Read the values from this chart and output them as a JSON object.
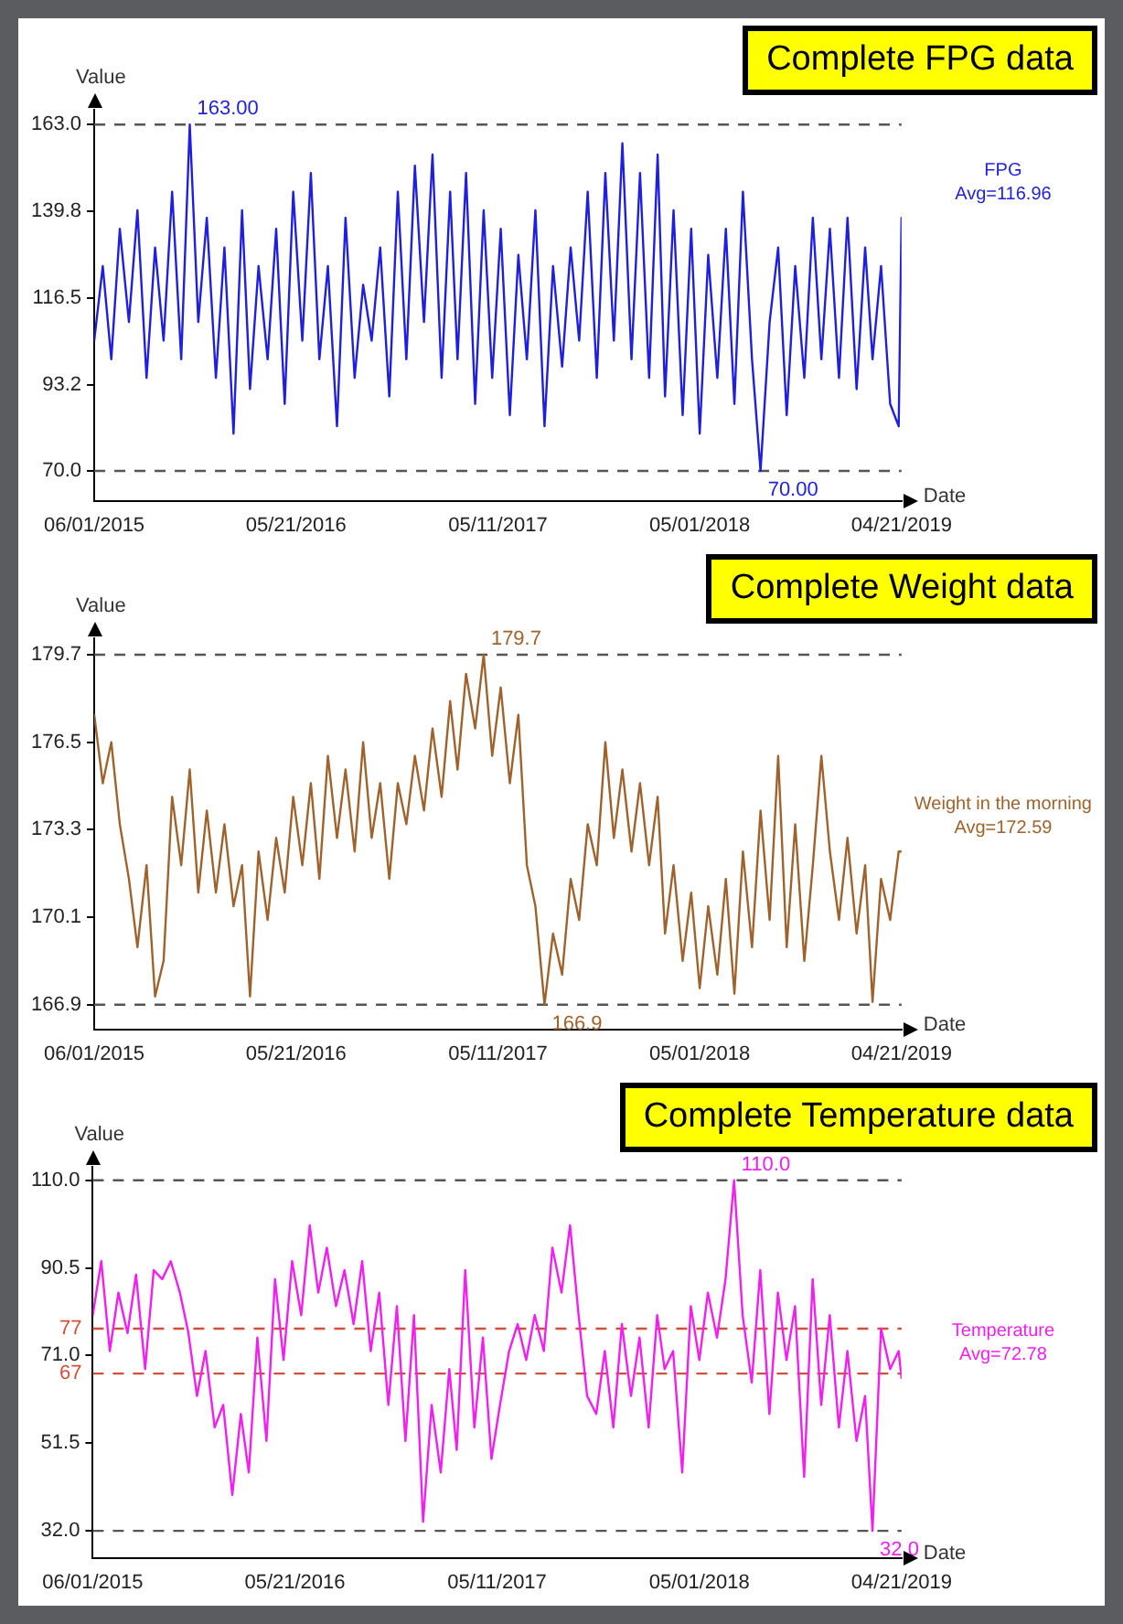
{
  "chart_data": [
    {
      "type": "line",
      "title": "Complete FPG data",
      "xlabel": "Date",
      "ylabel": "Value",
      "x": [
        "2015-06-01",
        "2015-06-16",
        "2015-07-01",
        "2015-07-16",
        "2015-08-01",
        "2015-08-16",
        "2015-09-01",
        "2015-09-16",
        "2015-10-01",
        "2015-10-16",
        "2015-11-01",
        "2015-11-16",
        "2015-12-01",
        "2015-12-16",
        "2016-01-01",
        "2016-01-16",
        "2016-02-01",
        "2016-02-16",
        "2016-03-01",
        "2016-03-16",
        "2016-04-01",
        "2016-04-16",
        "2016-05-01",
        "2016-05-16",
        "2016-06-01",
        "2016-06-16",
        "2016-07-01",
        "2016-07-16",
        "2016-08-01",
        "2016-08-16",
        "2016-09-01",
        "2016-09-16",
        "2016-10-01",
        "2016-10-16",
        "2016-11-01",
        "2016-11-16",
        "2016-12-01",
        "2016-12-16",
        "2017-01-01",
        "2017-01-16",
        "2017-02-01",
        "2017-02-16",
        "2017-03-01",
        "2017-03-16",
        "2017-04-01",
        "2017-04-16",
        "2017-05-01",
        "2017-05-16",
        "2017-06-01",
        "2017-06-16",
        "2017-07-01",
        "2017-07-16",
        "2017-08-01",
        "2017-08-16",
        "2017-09-01",
        "2017-09-16",
        "2017-10-01",
        "2017-10-16",
        "2017-11-01",
        "2017-11-16",
        "2017-12-01",
        "2017-12-16",
        "2018-01-01",
        "2018-01-16",
        "2018-02-01",
        "2018-02-16",
        "2018-03-01",
        "2018-03-16",
        "2018-04-01",
        "2018-04-16",
        "2018-05-01",
        "2018-05-16",
        "2018-06-01",
        "2018-06-16",
        "2018-07-01",
        "2018-07-16",
        "2018-08-01",
        "2018-08-16",
        "2018-09-01",
        "2018-09-16",
        "2018-10-01",
        "2018-10-16",
        "2018-11-01",
        "2018-11-16",
        "2018-12-01",
        "2018-12-16",
        "2019-01-01",
        "2019-01-16",
        "2019-02-01",
        "2019-02-16",
        "2019-03-01",
        "2019-03-16",
        "2019-04-01",
        "2019-04-16",
        "2019-04-21"
      ],
      "series": [
        {
          "name": "FPG",
          "color": "#1f1fe0",
          "values": [
            105,
            125,
            100,
            135,
            110,
            140,
            95,
            130,
            105,
            145,
            100,
            163,
            110,
            138,
            95,
            130,
            80,
            140,
            92,
            125,
            100,
            135,
            88,
            145,
            105,
            150,
            100,
            125,
            82,
            138,
            95,
            120,
            105,
            130,
            90,
            145,
            100,
            152,
            110,
            155,
            95,
            145,
            100,
            150,
            88,
            140,
            95,
            135,
            85,
            128,
            100,
            140,
            82,
            125,
            98,
            130,
            105,
            145,
            95,
            150,
            105,
            158,
            100,
            150,
            95,
            155,
            90,
            140,
            85,
            135,
            80,
            128,
            95,
            135,
            88,
            145,
            100,
            70,
            110,
            130,
            85,
            125,
            95,
            138,
            100,
            135,
            95,
            138,
            92,
            130,
            100,
            125,
            88,
            82,
            138
          ]
        }
      ],
      "xlim": [
        "2015-06-01",
        "2019-04-21"
      ],
      "xticks": [
        {
          "value": "2015-06-01",
          "label": "06/01/2015"
        },
        {
          "value": "2016-05-21",
          "label": "05/21/2016"
        },
        {
          "value": "2017-05-11",
          "label": "05/11/2017"
        },
        {
          "value": "2018-05-01",
          "label": "05/01/2018"
        },
        {
          "value": "2019-04-21",
          "label": "04/21/2019"
        }
      ],
      "ylim": [
        62,
        167
      ],
      "yticks": [
        {
          "value": 70,
          "label": "70.0"
        },
        {
          "value": 93.2,
          "label": "93.2"
        },
        {
          "value": 116.5,
          "label": "116.5"
        },
        {
          "value": 139.8,
          "label": "139.8"
        },
        {
          "value": 163,
          "label": "163.0"
        }
      ],
      "ref_lines": [
        {
          "axis": "y",
          "value": 163,
          "color": "#555555",
          "line_style": "dashed"
        },
        {
          "axis": "y",
          "value": 70,
          "color": "#555555",
          "line_style": "dashed"
        }
      ],
      "annotations": [
        {
          "text": "163.00",
          "x": "2015-11-16",
          "y": 163
        },
        {
          "text": "70.00",
          "x": "2018-08-16",
          "y": 70
        },
        "Avg=116.96"
      ],
      "grid": false,
      "legend": false
    },
    {
      "type": "line",
      "title": "Complete Weight data",
      "xlabel": "Date",
      "ylabel": "Value",
      "x": [
        "2015-06-01",
        "2015-06-16",
        "2015-07-01",
        "2015-07-16",
        "2015-08-01",
        "2015-08-16",
        "2015-09-01",
        "2015-09-16",
        "2015-10-01",
        "2015-10-16",
        "2015-11-01",
        "2015-11-16",
        "2015-12-01",
        "2015-12-16",
        "2016-01-01",
        "2016-01-16",
        "2016-02-01",
        "2016-02-16",
        "2016-03-01",
        "2016-03-16",
        "2016-04-01",
        "2016-04-16",
        "2016-05-01",
        "2016-05-16",
        "2016-06-01",
        "2016-06-16",
        "2016-07-01",
        "2016-07-16",
        "2016-08-01",
        "2016-08-16",
        "2016-09-01",
        "2016-09-16",
        "2016-10-01",
        "2016-10-16",
        "2016-11-01",
        "2016-11-16",
        "2016-12-01",
        "2016-12-16",
        "2017-01-01",
        "2017-01-16",
        "2017-02-01",
        "2017-02-16",
        "2017-03-01",
        "2017-03-16",
        "2017-04-01",
        "2017-04-16",
        "2017-05-01",
        "2017-05-16",
        "2017-06-01",
        "2017-06-16",
        "2017-07-01",
        "2017-07-16",
        "2017-08-01",
        "2017-08-16",
        "2017-09-01",
        "2017-09-16",
        "2017-10-01",
        "2017-10-16",
        "2017-11-01",
        "2017-11-16",
        "2017-12-01",
        "2017-12-16",
        "2018-01-01",
        "2018-01-16",
        "2018-02-01",
        "2018-02-16",
        "2018-03-01",
        "2018-03-16",
        "2018-04-01",
        "2018-04-16",
        "2018-05-01",
        "2018-05-16",
        "2018-06-01",
        "2018-06-16",
        "2018-07-01",
        "2018-07-16",
        "2018-08-01",
        "2018-08-16",
        "2018-09-01",
        "2018-09-16",
        "2018-10-01",
        "2018-10-16",
        "2018-11-01",
        "2018-11-16",
        "2018-12-01",
        "2018-12-16",
        "2019-01-01",
        "2019-01-16",
        "2019-02-01",
        "2019-02-16",
        "2019-03-01",
        "2019-03-16",
        "2019-04-01",
        "2019-04-16",
        "2019-04-21"
      ],
      "series": [
        {
          "name": "Weight in the morning",
          "color": "#a0622d",
          "values": [
            177.5,
            175.0,
            176.5,
            173.5,
            171.5,
            169.0,
            172.0,
            167.2,
            168.5,
            174.5,
            172.0,
            175.5,
            171.0,
            174.0,
            171.0,
            173.5,
            170.5,
            172.0,
            167.2,
            172.5,
            170.0,
            173.0,
            171.0,
            174.5,
            172.0,
            175.0,
            171.5,
            176.0,
            173.0,
            175.5,
            172.5,
            176.5,
            173.0,
            175.0,
            171.5,
            175.0,
            173.5,
            176.0,
            174.0,
            177.0,
            174.5,
            178.0,
            175.5,
            179.0,
            177.0,
            179.7,
            176.0,
            178.5,
            175.0,
            177.5,
            172.0,
            170.5,
            166.9,
            169.5,
            168.0,
            171.5,
            170.0,
            173.5,
            172.0,
            176.5,
            173.0,
            175.5,
            172.5,
            175.0,
            172.0,
            174.5,
            169.5,
            172.0,
            168.5,
            171.0,
            167.5,
            170.5,
            168.0,
            171.5,
            167.3,
            172.5,
            169.0,
            174.0,
            170.0,
            176.0,
            169.0,
            173.5,
            168.5,
            172.0,
            176.0,
            172.5,
            170.0,
            173.0,
            169.5,
            172.0,
            167.0,
            171.5,
            170.0,
            172.5,
            172.5
          ]
        }
      ],
      "xlim": [
        "2015-06-01",
        "2019-04-21"
      ],
      "xticks": [
        {
          "value": "2015-06-01",
          "label": "06/01/2015"
        },
        {
          "value": "2016-05-21",
          "label": "05/21/2016"
        },
        {
          "value": "2017-05-11",
          "label": "05/11/2017"
        },
        {
          "value": "2018-05-01",
          "label": "05/01/2018"
        },
        {
          "value": "2019-04-21",
          "label": "04/21/2019"
        }
      ],
      "ylim": [
        166.0,
        180.3
      ],
      "yticks": [
        {
          "value": 166.9,
          "label": "166.9"
        },
        {
          "value": 170.1,
          "label": "170.1"
        },
        {
          "value": 173.3,
          "label": "173.3"
        },
        {
          "value": 176.5,
          "label": "176.5"
        },
        {
          "value": 179.7,
          "label": "179.7"
        }
      ],
      "ref_lines": [
        {
          "axis": "y",
          "value": 179.7,
          "color": "#555555",
          "line_style": "dashed"
        },
        {
          "axis": "y",
          "value": 166.9,
          "color": "#555555",
          "line_style": "dashed"
        }
      ],
      "annotations": [
        {
          "text": "179.7",
          "x": "2017-04-16",
          "y": 179.7
        },
        {
          "text": "166.9",
          "x": "2017-08-01",
          "y": 166.9
        },
        "Avg=172.59"
      ],
      "grid": false,
      "legend": false
    },
    {
      "type": "line",
      "title": "Complete Temperature data",
      "xlabel": "Date",
      "ylabel": "Value",
      "x": [
        "2015-06-01",
        "2015-06-16",
        "2015-07-01",
        "2015-07-16",
        "2015-08-01",
        "2015-08-16",
        "2015-09-01",
        "2015-09-16",
        "2015-10-01",
        "2015-10-16",
        "2015-11-01",
        "2015-11-16",
        "2015-12-01",
        "2015-12-16",
        "2016-01-01",
        "2016-01-16",
        "2016-02-01",
        "2016-02-16",
        "2016-03-01",
        "2016-03-16",
        "2016-04-01",
        "2016-04-16",
        "2016-05-01",
        "2016-05-16",
        "2016-06-01",
        "2016-06-16",
        "2016-07-01",
        "2016-07-16",
        "2016-08-01",
        "2016-08-16",
        "2016-09-01",
        "2016-09-16",
        "2016-10-01",
        "2016-10-16",
        "2016-11-01",
        "2016-11-16",
        "2016-12-01",
        "2016-12-16",
        "2017-01-01",
        "2017-01-16",
        "2017-02-01",
        "2017-02-16",
        "2017-03-01",
        "2017-03-16",
        "2017-04-01",
        "2017-04-16",
        "2017-05-01",
        "2017-05-16",
        "2017-06-01",
        "2017-06-16",
        "2017-07-01",
        "2017-07-16",
        "2017-08-01",
        "2017-08-16",
        "2017-09-01",
        "2017-09-16",
        "2017-10-01",
        "2017-10-16",
        "2017-11-01",
        "2017-11-16",
        "2017-12-01",
        "2017-12-16",
        "2018-01-01",
        "2018-01-16",
        "2018-02-01",
        "2018-02-16",
        "2018-03-01",
        "2018-03-16",
        "2018-04-01",
        "2018-04-16",
        "2018-05-01",
        "2018-05-16",
        "2018-06-01",
        "2018-06-16",
        "2018-07-01",
        "2018-07-16",
        "2018-08-01",
        "2018-08-16",
        "2018-09-01",
        "2018-09-16",
        "2018-10-01",
        "2018-10-16",
        "2018-11-01",
        "2018-11-16",
        "2018-12-01",
        "2018-12-16",
        "2019-01-01",
        "2019-01-16",
        "2019-02-01",
        "2019-02-16",
        "2019-03-01",
        "2019-03-16",
        "2019-04-01",
        "2019-04-16",
        "2019-04-21"
      ],
      "series": [
        {
          "name": "Temperature",
          "color": "#f21ef2",
          "values": [
            80,
            92,
            72,
            85,
            76,
            89,
            68,
            90,
            88,
            92,
            85,
            76,
            62,
            72,
            55,
            60,
            40,
            58,
            45,
            75,
            52,
            88,
            70,
            92,
            80,
            100,
            85,
            95,
            82,
            90,
            78,
            92,
            72,
            85,
            60,
            82,
            52,
            80,
            34,
            60,
            45,
            68,
            50,
            90,
            55,
            75,
            48,
            60,
            72,
            78,
            70,
            80,
            72,
            95,
            85,
            100,
            80,
            62,
            58,
            72,
            55,
            78,
            62,
            75,
            55,
            80,
            68,
            72,
            45,
            82,
            70,
            85,
            75,
            88,
            110,
            80,
            65,
            90,
            58,
            85,
            70,
            82,
            44,
            88,
            60,
            80,
            55,
            72,
            52,
            62,
            32,
            77,
            68,
            72,
            66
          ]
        }
      ],
      "xlim": [
        "2015-06-01",
        "2019-04-21"
      ],
      "xticks": [
        {
          "value": "2015-06-01",
          "label": "06/01/2015"
        },
        {
          "value": "2016-05-21",
          "label": "05/21/2016"
        },
        {
          "value": "2017-05-11",
          "label": "05/11/2017"
        },
        {
          "value": "2018-05-01",
          "label": "05/01/2018"
        },
        {
          "value": "2019-04-21",
          "label": "04/21/2019"
        }
      ],
      "ylim": [
        26,
        113
      ],
      "yticks": [
        {
          "value": 32,
          "label": "32.0"
        },
        {
          "value": 51.5,
          "label": "51.5"
        },
        {
          "value": 71,
          "label": "71.0"
        },
        {
          "value": 90.5,
          "label": "90.5"
        },
        {
          "value": 110,
          "label": "110.0"
        }
      ],
      "ref_lines": [
        {
          "axis": "y",
          "value": 110,
          "color": "#555555",
          "line_style": "dashed"
        },
        {
          "axis": "y",
          "value": 32,
          "color": "#555555",
          "line_style": "dashed"
        },
        {
          "axis": "y",
          "value": 77,
          "label": "77",
          "color": "#d0503a",
          "line_style": "dashed"
        },
        {
          "axis": "y",
          "value": 67,
          "label": "67",
          "color": "#d0503a",
          "line_style": "dashed"
        }
      ],
      "annotations": [
        {
          "text": "110.0",
          "x": "2018-07-01",
          "y": 110
        },
        {
          "text": "32.0",
          "x": "2019-03-01",
          "y": 32
        },
        "Avg=72.78"
      ],
      "grid": false,
      "legend": false
    }
  ]
}
